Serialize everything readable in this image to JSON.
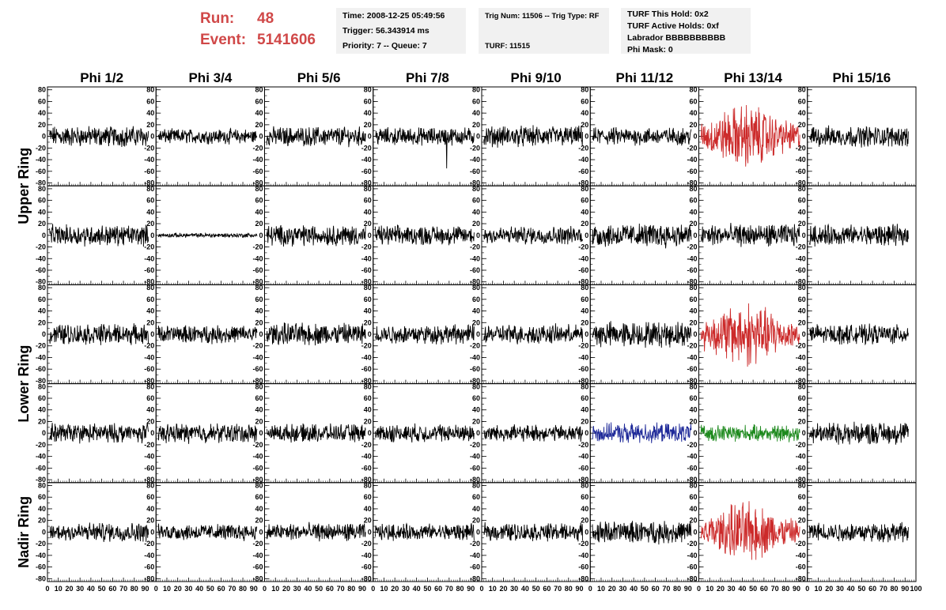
{
  "header": {
    "run_label": "Run:",
    "run_value": "48",
    "event_label": "Event:",
    "event_value": "5141606"
  },
  "info_box_1": {
    "time": "Time: 2008-12-25 05:49:56",
    "trigger": "Trigger: 56.343914 ms",
    "priority": "Priority: 7 -- Queue: 7"
  },
  "info_box_2": {
    "trig": "Trig Num: 11506 -- Trig Type: RF",
    "turf": "TURF: 11515"
  },
  "info_box_3": {
    "this_hold": "TURF This Hold: 0x2",
    "active_holds": "TURF Active Holds: 0xf",
    "labrador": "Labrador BBBBBBBBBB",
    "phi_mask": "Phi Mask: 0"
  },
  "chart_data": {
    "type": "line",
    "columns": [
      "Phi 1/2",
      "Phi 3/4",
      "Phi 5/6",
      "Phi 7/8",
      "Phi 9/10",
      "Phi 11/12",
      "Phi 13/14",
      "Phi 15/16"
    ],
    "ring_labels": [
      "Upper Ring",
      "Lower Ring",
      "Nadir Ring"
    ],
    "ylim": [
      -85,
      85
    ],
    "xlim": [
      0,
      100
    ],
    "y_ticks": [
      -80,
      -60,
      -40,
      -20,
      0,
      20,
      40,
      60,
      80
    ],
    "y_tick_labels": [
      "-80",
      "-60",
      "-40",
      "-20",
      "0",
      "20",
      "40",
      "60",
      "80"
    ],
    "x_ticks": [
      0,
      10,
      20,
      30,
      40,
      50,
      60,
      70,
      80,
      90,
      100
    ],
    "x_tick_labels": [
      "0",
      "10",
      "20",
      "30",
      "40",
      "50",
      "60",
      "70",
      "80",
      "90",
      "100"
    ],
    "colors": {
      "default": "#000000",
      "red": "#cc2a2a",
      "blue": "#1f2a99",
      "green": "#1e8a1e"
    },
    "grid": false,
    "rows": [
      [
        {
          "amp": 14,
          "color": "default"
        },
        {
          "amp": 10,
          "color": "default"
        },
        {
          "amp": 13,
          "color": "default"
        },
        {
          "amp": 12,
          "color": "default",
          "spike": -55
        },
        {
          "amp": 14,
          "color": "default"
        },
        {
          "amp": 12,
          "color": "default"
        },
        {
          "amp": 30,
          "color": "red"
        },
        {
          "amp": 14,
          "color": "default"
        }
      ],
      [
        {
          "amp": 14,
          "color": "default"
        },
        {
          "amp": 3,
          "color": "default"
        },
        {
          "amp": 14,
          "color": "default"
        },
        {
          "amp": 13,
          "color": "default"
        },
        {
          "amp": 12,
          "color": "default"
        },
        {
          "amp": 16,
          "color": "default"
        },
        {
          "amp": 15,
          "color": "default"
        },
        {
          "amp": 14,
          "color": "default"
        }
      ],
      [
        {
          "amp": 14,
          "color": "default"
        },
        {
          "amp": 12,
          "color": "default"
        },
        {
          "amp": 15,
          "color": "default"
        },
        {
          "amp": 13,
          "color": "default"
        },
        {
          "amp": 13,
          "color": "default"
        },
        {
          "amp": 17,
          "color": "default"
        },
        {
          "amp": 30,
          "color": "red"
        },
        {
          "amp": 13,
          "color": "default"
        }
      ],
      [
        {
          "amp": 13,
          "color": "default"
        },
        {
          "amp": 13,
          "color": "default"
        },
        {
          "amp": 12,
          "color": "default"
        },
        {
          "amp": 12,
          "color": "default"
        },
        {
          "amp": 11,
          "color": "default"
        },
        {
          "amp": 13,
          "color": "blue"
        },
        {
          "amp": 11,
          "color": "green"
        },
        {
          "amp": 15,
          "color": "default"
        }
      ],
      [
        {
          "amp": 13,
          "color": "default"
        },
        {
          "amp": 11,
          "color": "default"
        },
        {
          "amp": 12,
          "color": "default"
        },
        {
          "amp": 11,
          "color": "default"
        },
        {
          "amp": 12,
          "color": "default"
        },
        {
          "amp": 15,
          "color": "default"
        },
        {
          "amp": 28,
          "color": "red"
        },
        {
          "amp": 13,
          "color": "default"
        }
      ]
    ]
  }
}
